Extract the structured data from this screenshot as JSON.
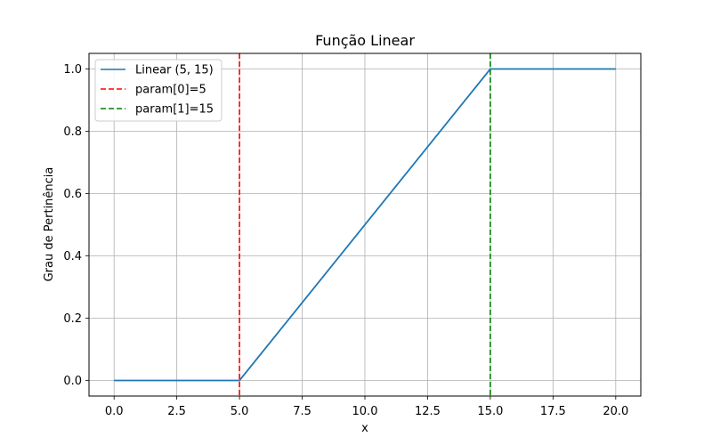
{
  "chart_data": {
    "type": "line",
    "title": "Função Linear",
    "xlabel": "x",
    "ylabel": "Grau de Pertinência",
    "xlim": [
      -1,
      21
    ],
    "ylim": [
      -0.05,
      1.05
    ],
    "grid": true,
    "legend_position": "top-left",
    "xticks": [
      0,
      2.5,
      5,
      7.5,
      10,
      12.5,
      15,
      17.5,
      20
    ],
    "xtick_labels": [
      "0.0",
      "2.5",
      "5.0",
      "7.5",
      "10.0",
      "12.5",
      "15.0",
      "17.5",
      "20.0"
    ],
    "yticks": [
      0,
      0.2,
      0.4,
      0.6,
      0.8,
      1.0
    ],
    "ytick_labels": [
      "0.0",
      "0.2",
      "0.4",
      "0.6",
      "0.8",
      "1.0"
    ],
    "series": [
      {
        "name": "Linear (5, 15)",
        "color": "#1f77b4",
        "style": "solid",
        "x": [
          0,
          5,
          15,
          20
        ],
        "y": [
          0,
          0,
          1,
          1
        ]
      }
    ],
    "vlines": [
      {
        "name": "param[0]=5",
        "x": 5,
        "color": "#ff0000",
        "style": "dashed"
      },
      {
        "name": "param[1]=15",
        "x": 15,
        "color": "#008000",
        "style": "dashed"
      }
    ]
  }
}
